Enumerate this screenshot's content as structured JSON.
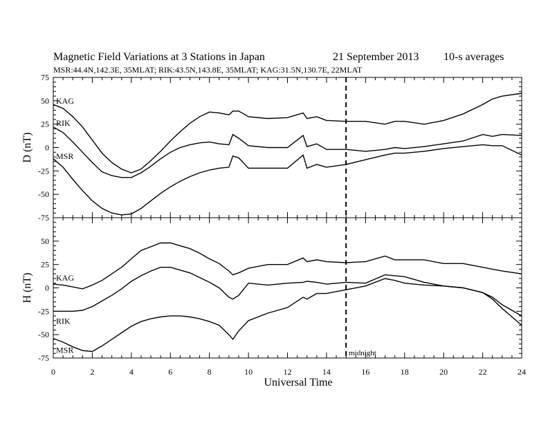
{
  "chart_data": {
    "type": "line",
    "title": "Magnetic Field Variations at 3 Stations in Japan",
    "date": "21 September 2013",
    "averaging": "10-s averages",
    "subtitle": "MSR:44.4N,142.3E, 35MLAT;  RIK:43.5N,143.8E, 35MLAT;  KAG:31.5N,130.7E, 22MLAT",
    "xlabel": "Universal Time",
    "xlim": [
      0,
      24
    ],
    "xticks": [
      0,
      2,
      4,
      6,
      8,
      10,
      12,
      14,
      16,
      18,
      20,
      22,
      24
    ],
    "midnight_ut": 15,
    "midnight_label": "midnight",
    "panels": [
      {
        "ylabel": "D (nT)",
        "ylim": [
          -75,
          75
        ],
        "yticks": [
          75,
          50,
          25,
          0,
          -25,
          -50,
          -75
        ],
        "series": [
          {
            "name": "KAG",
            "x": [
              0,
              0.5,
              1,
              1.5,
              2,
              2.5,
              3,
              3.5,
              4,
              4.5,
              5,
              5.5,
              6,
              6.5,
              7,
              7.5,
              8,
              8.5,
              9,
              9.2,
              9.5,
              10,
              11,
              12,
              12.8,
              13,
              13.5,
              14,
              15,
              16,
              17,
              17.5,
              18,
              19,
              20,
              21,
              22,
              22.5,
              23,
              24
            ],
            "y": [
              46,
              42,
              33,
              22,
              8,
              -6,
              -16,
              -23,
              -27,
              -23,
              -14,
              -4,
              7,
              17,
              26,
              33,
              38,
              37,
              35,
              39,
              39,
              33,
              31,
              32,
              37,
              31,
              33,
              29,
              28,
              28,
              25,
              28,
              28,
              25,
              29,
              36,
              46,
              52,
              55,
              58
            ]
          },
          {
            "name": "RIK",
            "x": [
              0,
              0.5,
              1,
              1.5,
              2,
              2.5,
              3,
              3.5,
              4,
              4.5,
              5,
              5.5,
              6,
              6.5,
              7,
              7.5,
              8,
              8.5,
              9,
              9.2,
              9.5,
              10,
              11,
              12,
              12.8,
              13,
              13.5,
              14,
              15,
              16,
              17,
              17.5,
              18,
              19,
              20,
              21,
              22,
              22.5,
              23,
              24
            ],
            "y": [
              22,
              16,
              6,
              -5,
              -16,
              -26,
              -30,
              -32,
              -32,
              -27,
              -20,
              -12,
              -5,
              0,
              3,
              5,
              6,
              4,
              3,
              14,
              10,
              2,
              0,
              0,
              13,
              1,
              4,
              -2,
              -2,
              -4,
              -2,
              0,
              -1,
              1,
              4,
              7,
              14,
              12,
              14,
              13
            ]
          },
          {
            "name": "MSR",
            "x": [
              0,
              0.5,
              1,
              1.5,
              2,
              2.5,
              3,
              3.5,
              4,
              4.5,
              5,
              5.5,
              6,
              6.5,
              7,
              7.5,
              8,
              8.5,
              9,
              9.2,
              9.5,
              10,
              11,
              12,
              12.8,
              13,
              13.5,
              14,
              15,
              16,
              17,
              17.5,
              18,
              19,
              20,
              21,
              22,
              22.5,
              23,
              24
            ],
            "y": [
              -12,
              -21,
              -34,
              -46,
              -57,
              -65,
              -70,
              -72,
              -71,
              -65,
              -57,
              -49,
              -42,
              -36,
              -31,
              -27,
              -24,
              -22,
              -21,
              -9,
              -11,
              -22,
              -22,
              -22,
              -8,
              -22,
              -18,
              -21,
              -18,
              -13,
              -8,
              -6,
              -6,
              -4,
              -1,
              1,
              3,
              2,
              2,
              -8
            ]
          }
        ]
      },
      {
        "ylabel": "H (nT)",
        "ylim": [
          -75,
          75
        ],
        "yticks": [
          75,
          50,
          25,
          0,
          -25,
          -50,
          -75
        ],
        "series": [
          {
            "name": "KAG",
            "x": [
              0,
              0.5,
              1,
              1.5,
              2,
              2.5,
              3,
              3.5,
              4,
              4.5,
              5,
              5.5,
              6,
              6.5,
              7,
              7.5,
              8,
              8.5,
              9,
              9.2,
              9.5,
              10,
              11,
              12,
              12.8,
              13,
              13.5,
              14,
              15,
              16,
              17,
              17.5,
              18,
              19,
              20,
              21,
              22,
              22.5,
              23,
              24
            ],
            "y": [
              4,
              3,
              1,
              -1,
              3,
              8,
              15,
              22,
              31,
              40,
              44,
              48,
              48,
              45,
              42,
              37,
              31,
              26,
              18,
              14,
              16,
              21,
              25,
              25,
              32,
              28,
              30,
              28,
              27,
              28,
              34,
              30,
              30,
              30,
              26,
              26,
              22,
              20,
              18,
              15
            ]
          },
          {
            "name": "RIK",
            "x": [
              0,
              0.5,
              1,
              1.5,
              2,
              2.5,
              3,
              3.5,
              4,
              4.5,
              5,
              5.5,
              6,
              6.5,
              7,
              7.5,
              8,
              8.5,
              9,
              9.2,
              9.5,
              10,
              11,
              12,
              12.8,
              13,
              13.5,
              14,
              15,
              16,
              17,
              17.5,
              18,
              19,
              20,
              21,
              22,
              22.5,
              23,
              24
            ],
            "y": [
              -25,
              -25,
              -25,
              -24,
              -20,
              -14,
              -8,
              -1,
              7,
              13,
              18,
              22,
              22,
              19,
              16,
              11,
              6,
              0,
              -10,
              -12,
              -8,
              5,
              3,
              5,
              6,
              7,
              6,
              4,
              6,
              5,
              14,
              13,
              12,
              6,
              2,
              0,
              -5,
              -10,
              -18,
              -30
            ]
          },
          {
            "name": "MSR",
            "x": [
              0,
              0.5,
              1,
              1.5,
              2,
              2.5,
              3,
              3.5,
              4,
              4.5,
              5,
              5.5,
              6,
              6.5,
              7,
              7.5,
              8,
              8.5,
              9,
              9.2,
              9.5,
              10,
              11,
              12,
              12.8,
              13,
              13.5,
              14,
              15,
              16,
              17,
              17.5,
              18,
              19,
              20,
              21,
              22,
              22.5,
              23,
              24
            ],
            "y": [
              -54,
              -58,
              -63,
              -67,
              -68,
              -62,
              -55,
              -48,
              -41,
              -36,
              -33,
              -31,
              -30,
              -30,
              -31,
              -33,
              -36,
              -40,
              -50,
              -55,
              -46,
              -35,
              -27,
              -21,
              -10,
              -12,
              -6,
              -6,
              -2,
              2,
              10,
              8,
              5,
              3,
              2,
              0,
              -5,
              -12,
              -22,
              -40
            ]
          }
        ]
      }
    ]
  }
}
